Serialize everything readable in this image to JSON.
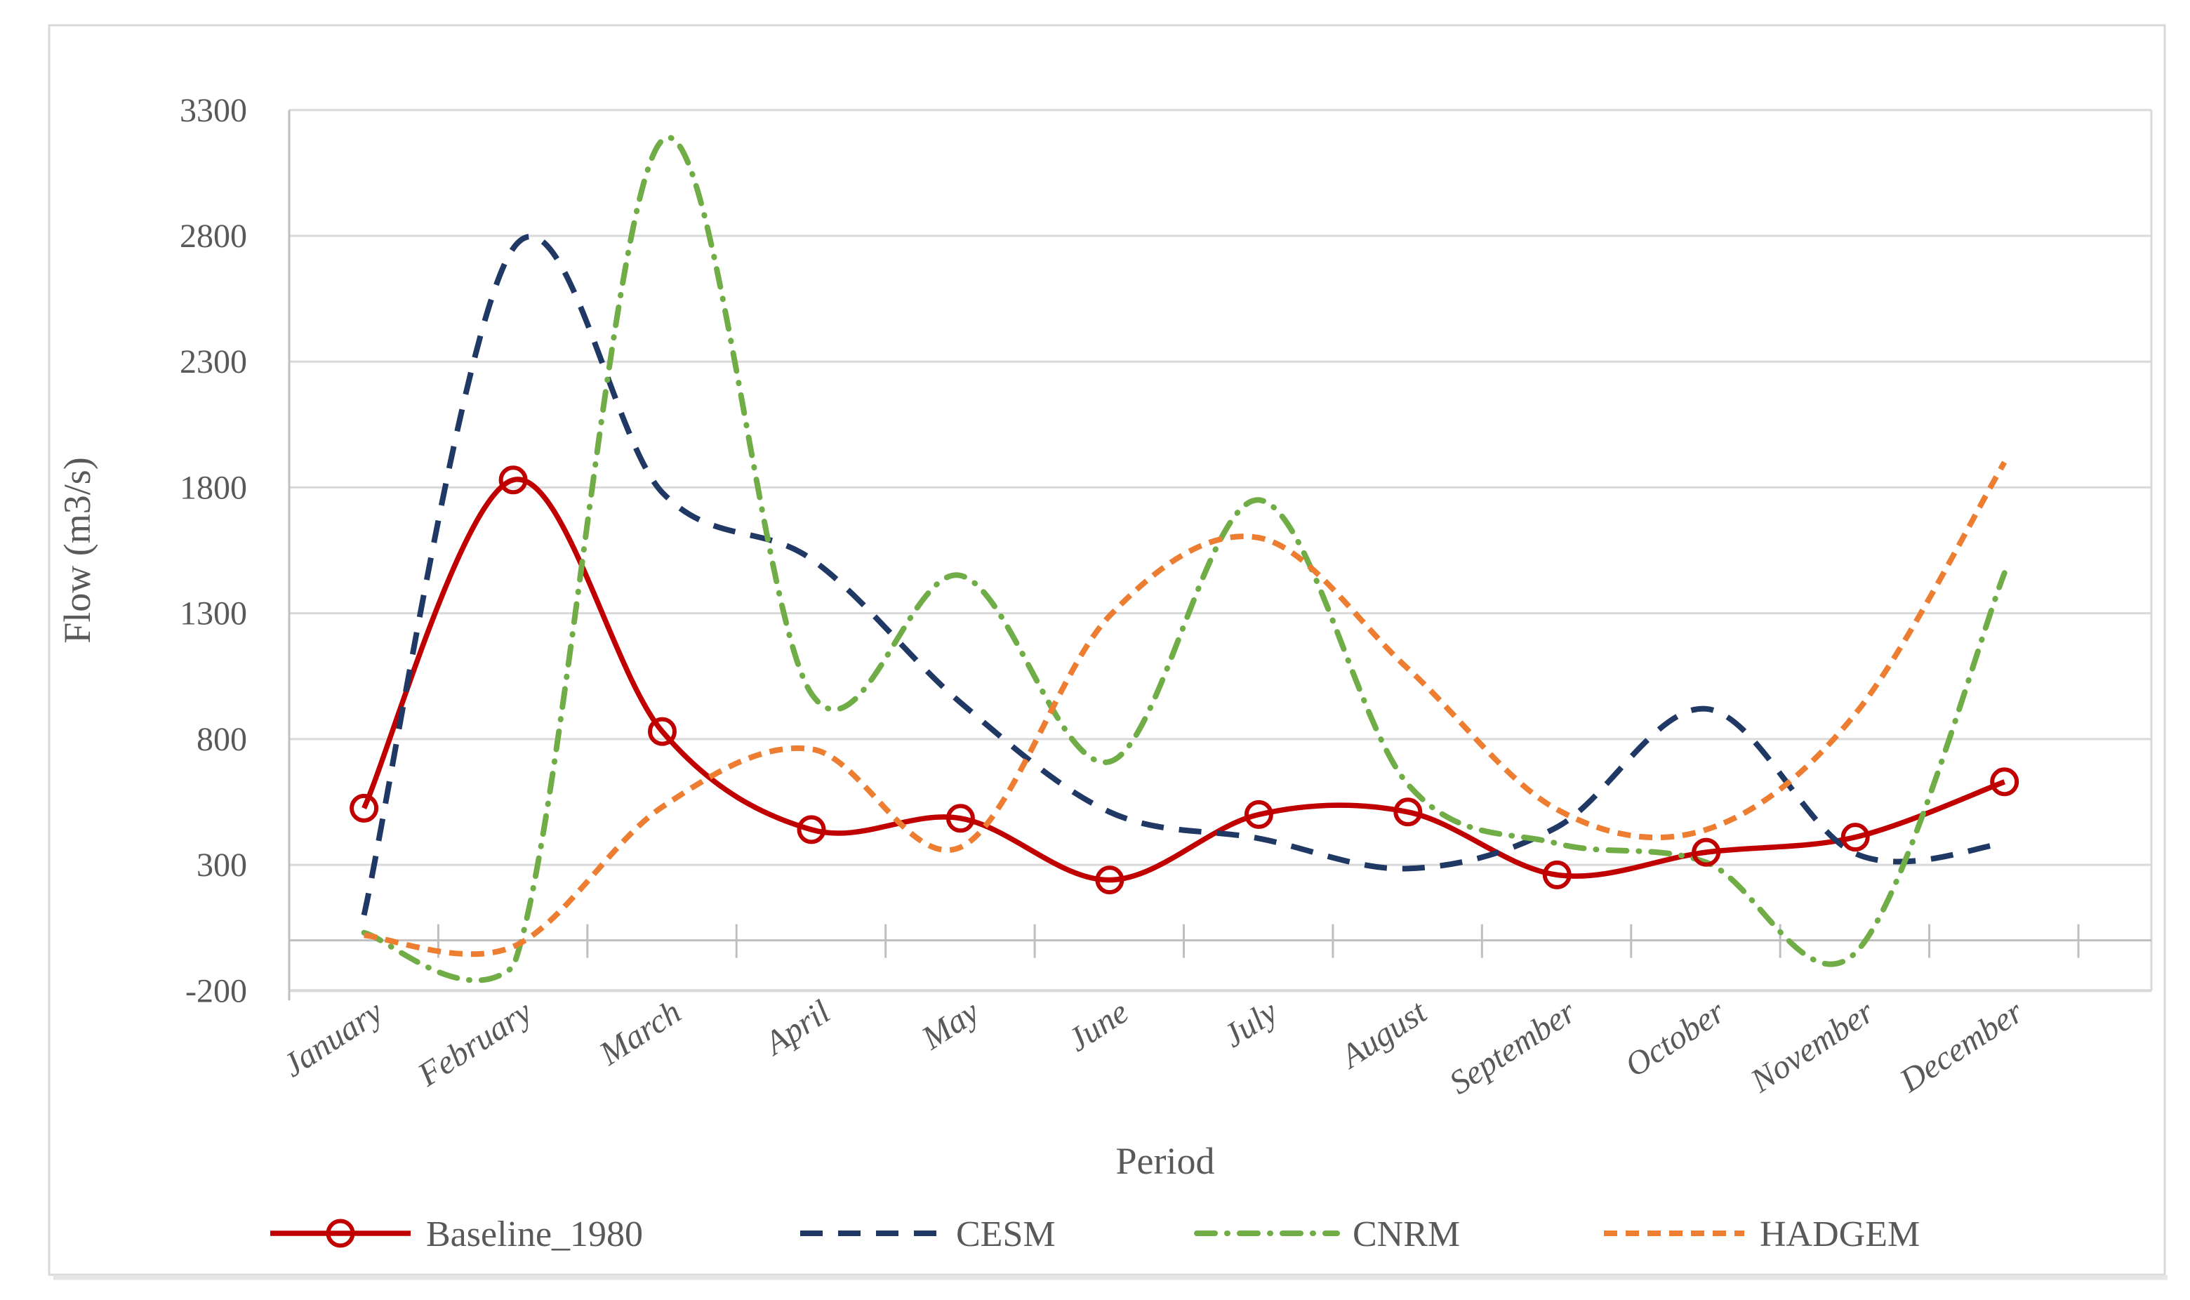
{
  "chart_data": {
    "type": "line",
    "xlabel": "Period",
    "ylabel": "Flow (m3/s)",
    "ylim": [
      -200,
      3300
    ],
    "ytick_step": 500,
    "ytick_values": [
      3300,
      2800,
      2300,
      1800,
      1300,
      800,
      300,
      -200
    ],
    "ytick_labels": [
      "3300",
      "2800",
      "2300",
      "1800",
      "1300",
      "800",
      "300",
      "-200"
    ],
    "categories": [
      "January",
      "February",
      "March",
      "April",
      "May",
      "June",
      "July",
      "August",
      "September",
      "October",
      "November",
      "December"
    ],
    "grid": "horizontal",
    "legend_position": "bottom",
    "axis_crosses_at": 0,
    "series": [
      {
        "name": "Baseline_1980",
        "color": "#C00000",
        "style": "solid",
        "marker": "open-circle",
        "values": [
          525,
          1830,
          830,
          440,
          485,
          240,
          500,
          510,
          260,
          350,
          410,
          630
        ]
      },
      {
        "name": "CESM",
        "color": "#1F3864",
        "style": "dash",
        "marker": "none",
        "values": [
          100,
          2750,
          1780,
          1515,
          945,
          510,
          405,
          285,
          450,
          920,
          345,
          385
        ]
      },
      {
        "name": "CNRM",
        "color": "#70AD47",
        "style": "dash-dot",
        "marker": "none",
        "values": [
          30,
          -105,
          3180,
          980,
          1450,
          710,
          1750,
          620,
          385,
          310,
          -50,
          1460
        ]
      },
      {
        "name": "HADGEM",
        "color": "#ED7D31",
        "style": "short-dash",
        "marker": "none",
        "values": [
          20,
          -25,
          530,
          760,
          370,
          1290,
          1600,
          1080,
          520,
          440,
          900,
          1900
        ]
      }
    ],
    "colors": {
      "gridline": "#D9D9D9",
      "axis_line": "#BFBFBF",
      "text": "#595959",
      "frame_border": "#D9D9D9"
    }
  }
}
